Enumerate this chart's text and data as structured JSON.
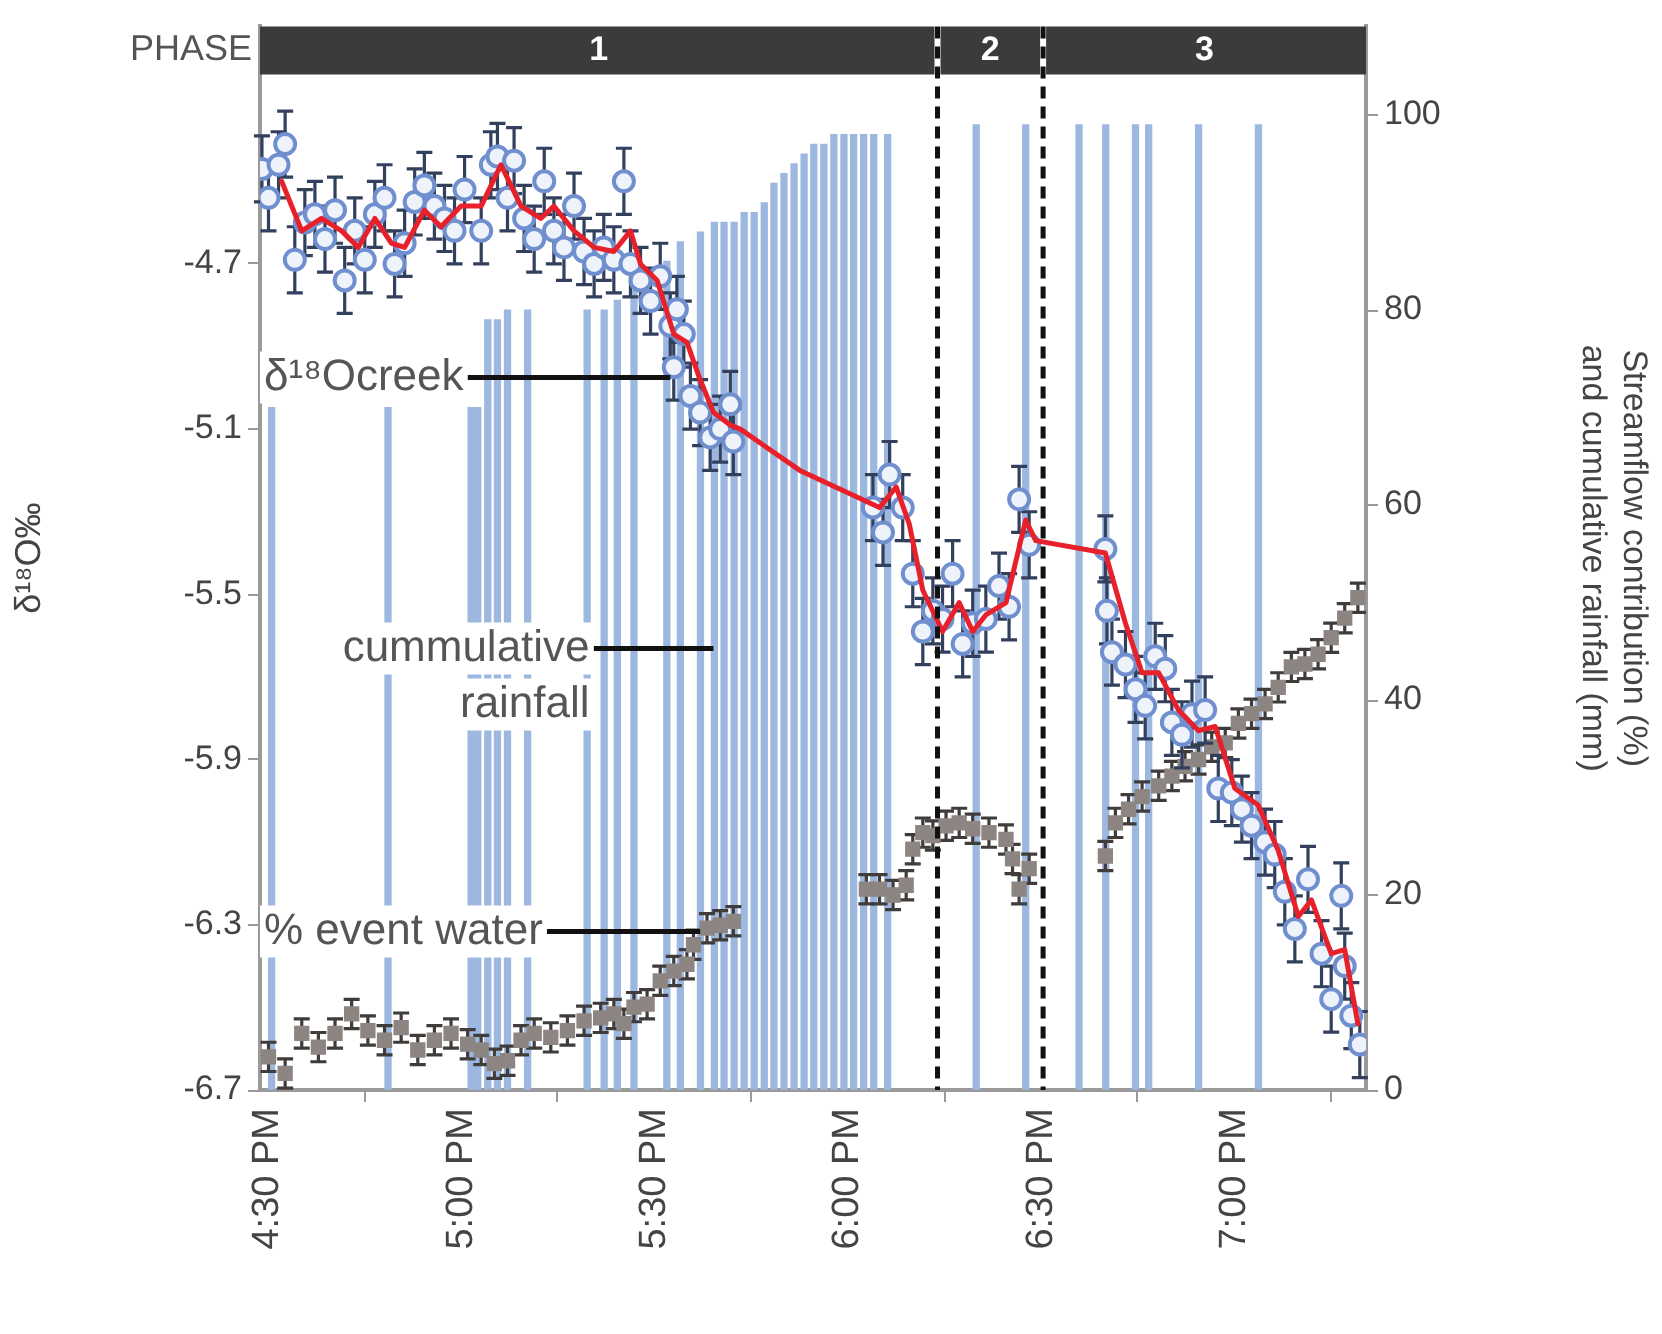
{
  "chart_data": {
    "type": "scatter",
    "ylabel": "δ¹⁸O‰",
    "y2label": "Streamflow contribution (%)\nand cumulative rainfall (mm)",
    "annotations": [
      "PHASE"
    ],
    "xlim": [
      16.48,
      19.34
    ],
    "xticks": [
      {
        "value": 16.5,
        "label": "4:30 PM"
      },
      {
        "value": 17,
        "label": "5:00 PM"
      },
      {
        "value": 17.5,
        "label": "5:30 PM"
      },
      {
        "value": 18,
        "label": "6:00 PM"
      },
      {
        "value": 18.5,
        "label": "6:30 PM"
      },
      {
        "value": 19,
        "label": "7:00 PM"
      }
    ],
    "ylim": [
      -6.7,
      -4.125
    ],
    "yticks": [
      -6.7,
      -6.3,
      -5.9,
      -5.5,
      -5.1,
      -4.7
    ],
    "y2lim": [
      0,
      109.1
    ],
    "y2ticks": [
      0,
      20,
      40,
      60,
      80,
      100
    ],
    "bands": [
      {
        "axis": "x",
        "from": 16.48,
        "to": 18.232,
        "label": "1",
        "color": "#3b3a3c"
      },
      {
        "axis": "x",
        "from": 18.232,
        "to": 18.505,
        "label": "2",
        "color": "#3b3a3c"
      },
      {
        "axis": "x",
        "from": 18.505,
        "to": 19.34,
        "label": "3",
        "color": "#3b3a3c"
      }
    ],
    "ref_lines": [
      {
        "axis": "x",
        "value": 18.232,
        "color": "#111111",
        "line_style": "dashed"
      },
      {
        "axis": "x",
        "value": 18.505,
        "color": "#111111",
        "line_style": "dashed"
      }
    ],
    "series": [
      {
        "name": "cummulative rainfall",
        "type": "bar",
        "axis": "y2",
        "color": "#9db8e0",
        "x": [
          16.51,
          16.811,
          17.026,
          17.043,
          17.069,
          17.094,
          17.12,
          17.172,
          17.326,
          17.37,
          17.404,
          17.447,
          17.532,
          17.567,
          17.619,
          17.655,
          17.68,
          17.706,
          17.732,
          17.758,
          17.784,
          17.809,
          17.835,
          17.861,
          17.887,
          17.912,
          17.938,
          17.964,
          17.99,
          18.015,
          18.041,
          18.067,
          18.103,
          18.332,
          18.46,
          18.598,
          18.667,
          18.744,
          18.778,
          18.907,
          19.062
        ],
        "values": [
          70,
          70,
          70,
          70,
          79,
          79,
          80,
          80,
          80,
          80,
          81,
          82,
          85,
          87,
          88,
          89,
          89,
          89,
          90,
          90,
          91,
          93,
          94,
          95,
          96,
          97,
          97,
          98,
          98,
          98,
          98,
          98,
          98,
          99,
          99,
          99,
          99,
          99,
          99,
          99,
          99
        ]
      },
      {
        "name": "% event water",
        "axis": "y2",
        "marker": "square",
        "color": "#8c8582",
        "x": [
          16.502,
          16.545,
          16.588,
          16.631,
          16.674,
          16.717,
          16.759,
          16.802,
          16.845,
          16.888,
          16.931,
          16.974,
          17.017,
          17.052,
          17.086,
          17.12,
          17.155,
          17.189,
          17.232,
          17.275,
          17.318,
          17.361,
          17.395,
          17.421,
          17.447,
          17.481,
          17.515,
          17.55,
          17.584,
          17.601,
          17.636,
          17.67,
          17.704,
          18.048,
          18.082,
          18.117,
          18.151,
          18.168,
          18.194,
          18.22,
          18.254,
          18.288,
          18.323,
          18.365,
          18.409,
          18.426,
          18.443,
          18.469,
          18.666,
          18.692,
          18.726,
          18.761,
          18.804,
          18.838,
          18.872,
          18.907,
          18.941,
          18.976,
          19.01,
          19.044,
          19.079,
          19.113,
          19.147,
          19.182,
          19.216,
          19.25,
          19.285,
          19.319
        ],
        "values": [
          3.4,
          1.7,
          5.8,
          4.4,
          5.8,
          7.8,
          6.1,
          5.1,
          6.4,
          4.1,
          5.1,
          5.8,
          4.7,
          4.1,
          2.7,
          3.0,
          5.1,
          5.8,
          5.4,
          6.1,
          7.1,
          7.4,
          7.8,
          6.8,
          8.5,
          8.8,
          11.2,
          12.2,
          12.9,
          14.9,
          16.6,
          16.9,
          17.3,
          20.6,
          20.6,
          20.0,
          21.0,
          24.7,
          26.4,
          26.1,
          27.1,
          27.4,
          26.8,
          26.4,
          25.7,
          23.7,
          20.6,
          22.7,
          24.0,
          27.4,
          28.8,
          30.1,
          31.2,
          32.2,
          33.2,
          33.9,
          35.2,
          35.6,
          37.6,
          38.6,
          39.6,
          41.3,
          43.4,
          43.7,
          44.7,
          46.4,
          48.4,
          50.5
        ],
        "errors": [
          1.5,
          1.5,
          1.5,
          1.5,
          1.5,
          1.5,
          1.5,
          1.5,
          1.5,
          1.5,
          1.5,
          1.5,
          1.5,
          1.5,
          1.5,
          1.5,
          1.5,
          1.5,
          1.5,
          1.5,
          1.5,
          1.5,
          1.5,
          1.5,
          1.5,
          1.5,
          1.5,
          1.5,
          1.5,
          1.5,
          1.5,
          1.5,
          1.5,
          1.5,
          1.5,
          1.5,
          1.5,
          1.5,
          1.5,
          1.5,
          1.5,
          1.5,
          1.5,
          1.5,
          1.5,
          1.5,
          1.5,
          1.5,
          1.5,
          1.5,
          1.5,
          1.5,
          1.5,
          1.5,
          1.5,
          1.5,
          1.5,
          1.5,
          1.5,
          1.5,
          1.5,
          1.5,
          1.5,
          1.5,
          1.5,
          1.5,
          1.5,
          1.5
        ]
      },
      {
        "name": "δ¹⁸Ocreek",
        "marker": "circle",
        "color": "#6f8fcf",
        "x": [
          16.485,
          16.502,
          16.528,
          16.545,
          16.57,
          16.596,
          16.622,
          16.648,
          16.674,
          16.699,
          16.725,
          16.751,
          16.777,
          16.802,
          16.828,
          16.854,
          16.88,
          16.905,
          16.931,
          16.957,
          16.983,
          17.009,
          17.052,
          17.077,
          17.094,
          17.12,
          17.137,
          17.163,
          17.189,
          17.215,
          17.24,
          17.266,
          17.292,
          17.318,
          17.344,
          17.369,
          17.395,
          17.421,
          17.438,
          17.464,
          17.49,
          17.515,
          17.541,
          17.55,
          17.558,
          17.576,
          17.593,
          17.618,
          17.644,
          17.67,
          17.696,
          17.704,
          18.065,
          18.091,
          18.108,
          18.142,
          18.168,
          18.194,
          18.22,
          18.245,
          18.271,
          18.297,
          18.323,
          18.357,
          18.391,
          18.417,
          18.443,
          18.469,
          18.666,
          18.67,
          18.683,
          18.718,
          18.744,
          18.769,
          18.795,
          18.821,
          18.838,
          18.864,
          18.89,
          18.924,
          18.958,
          18.993,
          19.019,
          19.044,
          19.079,
          19.104,
          19.13,
          19.156,
          19.19,
          19.225,
          19.25,
          19.276,
          19.285,
          19.302,
          19.324
        ],
        "values": [
          -4.47,
          -4.54,
          -4.46,
          -4.41,
          -4.69,
          -4.6,
          -4.58,
          -4.64,
          -4.57,
          -4.74,
          -4.62,
          -4.69,
          -4.58,
          -4.54,
          -4.7,
          -4.65,
          -4.55,
          -4.51,
          -4.56,
          -4.59,
          -4.62,
          -4.52,
          -4.62,
          -4.46,
          -4.44,
          -4.54,
          -4.45,
          -4.59,
          -4.64,
          -4.5,
          -4.62,
          -4.66,
          -4.56,
          -4.67,
          -4.7,
          -4.66,
          -4.69,
          -4.5,
          -4.7,
          -4.74,
          -4.79,
          -4.73,
          -4.85,
          -4.95,
          -4.81,
          -4.87,
          -5.02,
          -5.06,
          -5.12,
          -5.1,
          -5.04,
          -5.13,
          -5.29,
          -5.35,
          -5.21,
          -5.29,
          -5.45,
          -5.59,
          -5.54,
          -5.56,
          -5.45,
          -5.62,
          -5.57,
          -5.56,
          -5.48,
          -5.53,
          -5.27,
          -5.38,
          -5.39,
          -5.54,
          -5.64,
          -5.67,
          -5.73,
          -5.77,
          -5.65,
          -5.68,
          -5.81,
          -5.84,
          -5.79,
          -5.78,
          -5.97,
          -5.98,
          -6.02,
          -6.06,
          -6.1,
          -6.13,
          -6.22,
          -6.31,
          -6.19,
          -6.37,
          -6.48,
          -6.23,
          -6.4,
          -6.52,
          -6.59
        ],
        "errors": [
          0.08,
          0.08,
          0.08,
          0.08,
          0.08,
          0.08,
          0.08,
          0.08,
          0.08,
          0.08,
          0.08,
          0.08,
          0.08,
          0.08,
          0.08,
          0.08,
          0.08,
          0.08,
          0.08,
          0.08,
          0.08,
          0.08,
          0.08,
          0.08,
          0.08,
          0.08,
          0.08,
          0.08,
          0.08,
          0.08,
          0.08,
          0.08,
          0.08,
          0.08,
          0.08,
          0.08,
          0.08,
          0.08,
          0.08,
          0.08,
          0.08,
          0.08,
          0.08,
          0.08,
          0.08,
          0.08,
          0.08,
          0.08,
          0.08,
          0.08,
          0.08,
          0.08,
          0.08,
          0.08,
          0.08,
          0.08,
          0.08,
          0.08,
          0.08,
          0.08,
          0.08,
          0.08,
          0.08,
          0.08,
          0.08,
          0.08,
          0.08,
          0.08,
          0.08,
          0.08,
          0.08,
          0.08,
          0.08,
          0.08,
          0.08,
          0.08,
          0.08,
          0.08,
          0.08,
          0.08,
          0.08,
          0.08,
          0.08,
          0.08,
          0.08,
          0.08,
          0.08,
          0.08,
          0.08,
          0.08,
          0.08,
          0.08,
          0.08,
          0.08,
          0.08
        ]
      },
      {
        "type": "line",
        "marker": "none",
        "color": "#e8202a",
        "x": [
          16.536,
          16.588,
          16.639,
          16.691,
          16.734,
          16.777,
          16.82,
          16.854,
          16.905,
          16.948,
          17.0,
          17.052,
          17.103,
          17.155,
          17.206,
          17.24,
          17.292,
          17.344,
          17.395,
          17.438,
          17.464,
          17.507,
          17.55,
          17.584,
          17.618,
          17.653,
          17.696,
          17.722,
          17.876,
          18.082,
          18.125,
          18.159,
          18.194,
          18.245,
          18.288,
          18.323,
          18.357,
          18.409,
          18.46,
          18.486,
          18.666,
          18.718,
          18.761,
          18.804,
          18.855,
          18.907,
          18.95,
          19.001,
          19.061,
          19.113,
          19.165,
          19.199,
          19.25,
          19.285,
          19.319
        ],
        "values": [
          -4.5,
          -4.62,
          -4.59,
          -4.62,
          -4.66,
          -4.59,
          -4.65,
          -4.66,
          -4.57,
          -4.61,
          -4.56,
          -4.56,
          -4.46,
          -4.56,
          -4.59,
          -4.56,
          -4.62,
          -4.66,
          -4.67,
          -4.62,
          -4.7,
          -4.74,
          -4.87,
          -4.89,
          -4.98,
          -5.06,
          -5.09,
          -5.1,
          -5.2,
          -5.29,
          -5.24,
          -5.33,
          -5.49,
          -5.59,
          -5.52,
          -5.59,
          -5.55,
          -5.52,
          -5.32,
          -5.37,
          -5.4,
          -5.57,
          -5.69,
          -5.69,
          -5.78,
          -5.83,
          -5.82,
          -5.97,
          -6.01,
          -6.12,
          -6.28,
          -6.24,
          -6.37,
          -6.36,
          -6.54
        ]
      }
    ]
  }
}
